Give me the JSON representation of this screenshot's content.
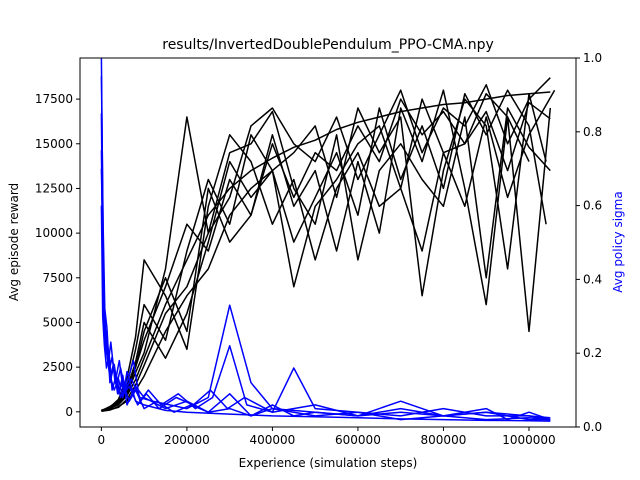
{
  "chart_data": {
    "type": "line",
    "title": "results/InvertedDoublePendulum_PPO-CMA.npy",
    "xlabel": "Experience (simulation steps)",
    "ylabel": "Avg episode reward",
    "ylabel_right": "Avg policy sigma",
    "xlim": [
      -50000,
      1110000
    ],
    "ylim": [
      -850,
      19800
    ],
    "ylim_right": [
      0,
      1.0
    ],
    "x_ticks": [
      0,
      200000,
      400000,
      600000,
      800000,
      1000000
    ],
    "x_tick_labels": [
      "0",
      "200000",
      "400000",
      "600000",
      "800000",
      "1000000"
    ],
    "y_ticks": [
      0,
      2500,
      5000,
      7500,
      10000,
      12500,
      15000,
      17500
    ],
    "y_tick_labels": [
      "0",
      "2500",
      "5000",
      "7500",
      "10000",
      "12500",
      "15000",
      "17500"
    ],
    "y_right_ticks": [
      0.0,
      0.2,
      0.4,
      0.6,
      0.8,
      1.0
    ],
    "y_right_tick_labels": [
      "0.0",
      "0.2",
      "0.4",
      "0.6",
      "0.8",
      "1.0"
    ],
    "colors": {
      "reward": "#000000",
      "sigma": "#0000ff"
    },
    "grid": false,
    "legend": "none",
    "reward_series": [
      {
        "x": [
          0,
          20000,
          40000,
          60000,
          80000,
          100000,
          150000,
          200000,
          250000,
          300000,
          350000,
          400000,
          450000,
          500000,
          550000,
          600000,
          650000,
          700000,
          750000,
          800000,
          850000,
          900000,
          950000,
          1000000,
          1050000
        ],
        "y": [
          50,
          200,
          400,
          900,
          1800,
          3000,
          6000,
          8500,
          11000,
          12500,
          13500,
          14200,
          14800,
          15200,
          15800,
          16200,
          16500,
          16800,
          17000,
          17200,
          17300,
          17500,
          17700,
          17800,
          17900
        ]
      },
      {
        "x": [
          0,
          20000,
          40000,
          60000,
          80000,
          100000,
          150000,
          200000,
          250000,
          300000,
          350000,
          400000,
          450000,
          500000,
          550000,
          600000,
          650000,
          700000,
          750000,
          800000,
          850000,
          900000,
          950000,
          1000000
        ],
        "y": [
          80,
          150,
          500,
          1200,
          2500,
          4000,
          7000,
          10500,
          9000,
          13000,
          11000,
          15000,
          12000,
          14500,
          13500,
          16000,
          14000,
          17500,
          15500,
          16800,
          15000,
          17800,
          16500,
          14000
        ]
      },
      {
        "x": [
          0,
          20000,
          40000,
          60000,
          80000,
          100000,
          150000,
          200000,
          250000,
          300000,
          350000,
          400000,
          450000,
          500000,
          550000,
          600000,
          650000,
          700000,
          750000,
          800000,
          850000,
          900000,
          950000,
          1000000,
          1040000
        ],
        "y": [
          60,
          300,
          600,
          1500,
          3500,
          6000,
          4000,
          9000,
          13000,
          10500,
          15500,
          13500,
          9500,
          12000,
          14500,
          11000,
          17000,
          13000,
          16000,
          12500,
          17800,
          15500,
          18000,
          16000,
          10500
        ]
      },
      {
        "x": [
          0,
          20000,
          40000,
          60000,
          80000,
          100000,
          150000,
          200000,
          250000,
          300000,
          350000,
          400000,
          450000,
          500000,
          550000,
          600000,
          650000,
          700000,
          750000,
          800000,
          850000,
          900000,
          950000,
          1000000,
          1050000
        ],
        "y": [
          40,
          120,
          250,
          700,
          1500,
          2600,
          5500,
          7000,
          10000,
          12000,
          16000,
          17000,
          15000,
          14000,
          16500,
          13000,
          15500,
          18000,
          14500,
          17000,
          16000,
          18300,
          15000,
          17500,
          18700
        ]
      },
      {
        "x": [
          0,
          20000,
          40000,
          60000,
          80000,
          100000,
          150000,
          200000,
          250000,
          300000,
          350000,
          400000,
          450000,
          500000,
          550000,
          600000,
          650000,
          700000,
          750000,
          800000,
          850000,
          900000,
          950000,
          1000000,
          1060000
        ],
        "y": [
          70,
          250,
          700,
          1900,
          4200,
          8500,
          6500,
          3500,
          11500,
          15500,
          14000,
          10500,
          13000,
          8500,
          12500,
          14500,
          11500,
          12500,
          9000,
          14500,
          11500,
          16500,
          12000,
          15500,
          18000
        ]
      },
      {
        "x": [
          0,
          20000,
          40000,
          60000,
          80000,
          100000,
          150000,
          200000,
          250000,
          300000,
          350000,
          400000,
          450000,
          500000,
          550000,
          600000,
          650000,
          700000,
          750000,
          800000,
          850000,
          900000,
          950000,
          1000000,
          1050000
        ],
        "y": [
          30,
          100,
          300,
          600,
          1200,
          2000,
          4500,
          6500,
          8000,
          11000,
          12500,
          13500,
          7000,
          11500,
          13000,
          15000,
          16000,
          12500,
          17500,
          14500,
          15000,
          16800,
          13500,
          17300,
          16400
        ]
      },
      {
        "x": [
          0,
          20000,
          40000,
          60000,
          80000,
          100000,
          150000,
          200000,
          250000,
          300000,
          350000,
          400000,
          450000,
          500000,
          550000,
          600000,
          650000,
          700000,
          750000,
          800000,
          850000,
          900000,
          950000,
          1000000,
          1050000
        ],
        "y": [
          50,
          180,
          450,
          1000,
          2200,
          3300,
          8000,
          16500,
          10000,
          14500,
          15000,
          16800,
          12500,
          10500,
          15500,
          8500,
          13500,
          15000,
          13000,
          11500,
          16500,
          7500,
          17000,
          14800,
          13500
        ]
      },
      {
        "x": [
          0,
          20000,
          40000,
          60000,
          80000,
          100000,
          150000,
          200000,
          250000,
          300000,
          350000,
          400000,
          450000,
          500000,
          550000,
          600000,
          650000,
          700000,
          750000,
          800000,
          850000,
          900000,
          950000,
          1000000,
          1040000
        ],
        "y": [
          90,
          220,
          550,
          1300,
          2800,
          5000,
          3000,
          5500,
          9500,
          14000,
          12000,
          13500,
          14500,
          16000,
          12000,
          17000,
          14500,
          16500,
          6500,
          13500,
          17500,
          16000,
          8000,
          17800,
          14000
        ]
      },
      {
        "x": [
          0,
          20000,
          40000,
          60000,
          80000,
          100000,
          150000,
          200000,
          250000,
          300000,
          350000,
          400000,
          450000,
          500000,
          550000,
          600000,
          650000,
          700000,
          750000,
          800000,
          850000,
          900000,
          950000,
          1000000,
          1050000
        ],
        "y": [
          60,
          200,
          500,
          1100,
          2500,
          4500,
          7500,
          4500,
          12500,
          9500,
          11000,
          15500,
          11500,
          13500,
          9000,
          14000,
          10000,
          17000,
          14000,
          18000,
          12500,
          6000,
          16500,
          4500,
          17000
        ]
      }
    ],
    "sigma_series": [
      {
        "x": [
          0,
          3000,
          6000,
          10000,
          15000,
          20000,
          30000,
          40000,
          50000,
          60000,
          80000,
          100000,
          150000,
          200000,
          300000,
          400000,
          500000,
          600000,
          700000,
          800000,
          900000,
          1000000,
          1050000
        ],
        "y": [
          1.0,
          0.62,
          0.35,
          0.25,
          0.18,
          0.14,
          0.1,
          0.13,
          0.08,
          0.15,
          0.07,
          0.06,
          0.045,
          0.04,
          0.035,
          0.03,
          0.028,
          0.025,
          0.022,
          0.02,
          0.018,
          0.017,
          0.016
        ]
      },
      {
        "x": [
          0,
          3000,
          6000,
          10000,
          15000,
          20000,
          30000,
          40000,
          50000,
          60000,
          80000,
          100000,
          150000,
          200000,
          250000,
          300000,
          350000,
          400000,
          500000,
          600000,
          700000,
          800000,
          900000,
          1000000,
          1050000
        ],
        "y": [
          0.85,
          0.45,
          0.3,
          0.2,
          0.22,
          0.12,
          0.17,
          0.09,
          0.14,
          0.06,
          0.11,
          0.08,
          0.05,
          0.07,
          0.04,
          0.09,
          0.03,
          0.05,
          0.03,
          0.04,
          0.02,
          0.03,
          0.02,
          0.025,
          0.02
        ]
      },
      {
        "x": [
          0,
          4000,
          8000,
          12000,
          18000,
          25000,
          35000,
          45000,
          55000,
          70000,
          90000,
          120000,
          160000,
          200000,
          250000,
          300000,
          350000,
          400000,
          500000,
          600000,
          700000,
          800000,
          900000,
          1000000,
          1050000
        ],
        "y": [
          0.75,
          0.4,
          0.28,
          0.24,
          0.15,
          0.19,
          0.11,
          0.16,
          0.1,
          0.13,
          0.08,
          0.07,
          0.06,
          0.05,
          0.08,
          0.33,
          0.12,
          0.05,
          0.04,
          0.03,
          0.05,
          0.03,
          0.04,
          0.02,
          0.02
        ]
      },
      {
        "x": [
          0,
          3000,
          7000,
          12000,
          18000,
          25000,
          35000,
          45000,
          60000,
          75000,
          90000,
          110000,
          140000,
          180000,
          220000,
          260000,
          300000,
          340000,
          400000,
          450000,
          500000,
          600000,
          700000,
          800000,
          900000,
          1000000,
          1050000
        ],
        "y": [
          0.6,
          0.3,
          0.22,
          0.16,
          0.2,
          0.1,
          0.14,
          0.08,
          0.12,
          0.18,
          0.07,
          0.1,
          0.06,
          0.09,
          0.05,
          0.08,
          0.22,
          0.06,
          0.04,
          0.16,
          0.05,
          0.04,
          0.03,
          0.05,
          0.03,
          0.03,
          0.025
        ]
      },
      {
        "x": [
          0,
          4000,
          8000,
          13000,
          20000,
          28000,
          38000,
          50000,
          65000,
          80000,
          100000,
          130000,
          170000,
          210000,
          250000,
          300000,
          350000,
          400000,
          450000,
          500000,
          600000,
          700000,
          800000,
          900000,
          950000,
          1000000,
          1050000
        ],
        "y": [
          0.95,
          0.55,
          0.32,
          0.27,
          0.13,
          0.17,
          0.09,
          0.12,
          0.07,
          0.1,
          0.05,
          0.07,
          0.04,
          0.06,
          0.04,
          0.05,
          0.03,
          0.06,
          0.03,
          0.04,
          0.03,
          0.07,
          0.03,
          0.05,
          0.02,
          0.04,
          0.02
        ]
      },
      {
        "x": [
          0,
          3000,
          6000,
          11000,
          16000,
          22000,
          32000,
          42000,
          52000,
          65000,
          85000,
          105000,
          135000,
          175000,
          215000,
          255000,
          295000,
          335000,
          400000,
          500000,
          600000,
          700000,
          800000,
          900000,
          1000000,
          1050000
        ],
        "y": [
          0.7,
          0.5,
          0.26,
          0.21,
          0.17,
          0.23,
          0.12,
          0.18,
          0.09,
          0.11,
          0.06,
          0.09,
          0.05,
          0.08,
          0.06,
          0.1,
          0.05,
          0.08,
          0.04,
          0.06,
          0.03,
          0.04,
          0.03,
          0.04,
          0.03,
          0.02
        ]
      }
    ]
  }
}
